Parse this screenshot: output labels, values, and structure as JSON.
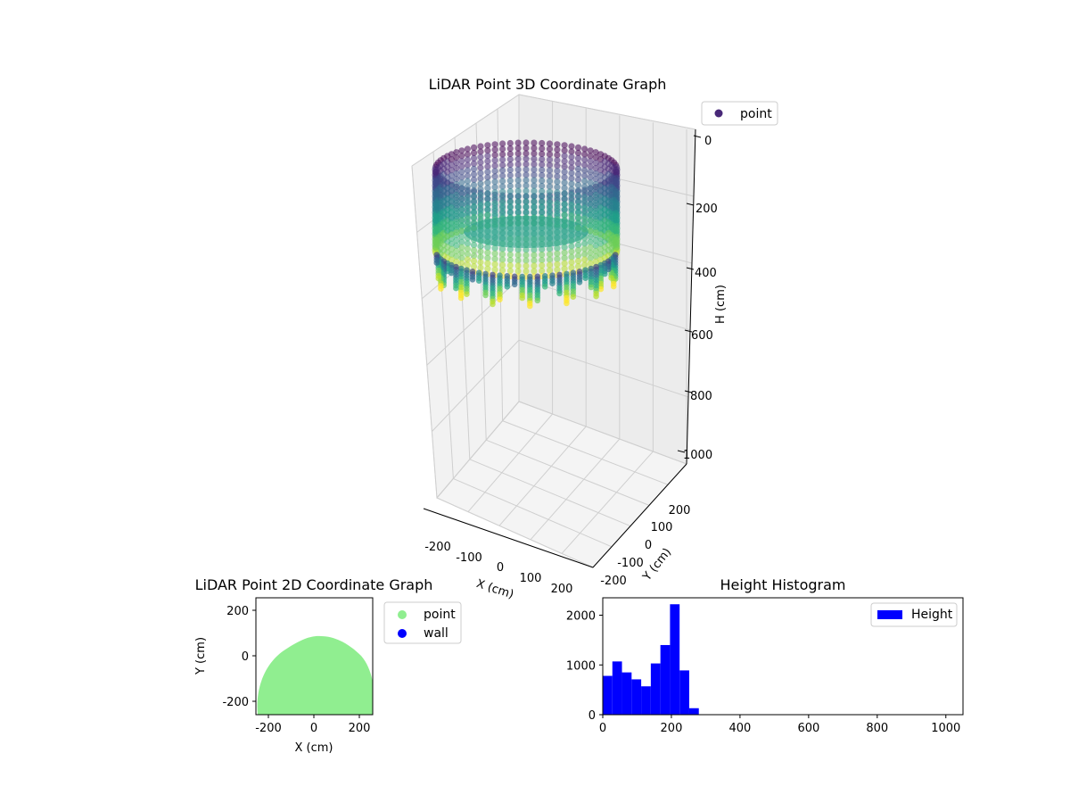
{
  "chart_data": [
    {
      "id": "scatter3d",
      "type": "scatter3d",
      "title": "LiDAR Point 3D Coordinate Graph",
      "xlabel": "X (cm)",
      "ylabel": "Y (cm)",
      "zlabel": "H (cm)",
      "x_ticks": [
        -200,
        -100,
        0,
        100,
        200
      ],
      "y_ticks": [
        -200,
        -100,
        0,
        100,
        200
      ],
      "z_ticks": [
        0,
        200,
        400,
        600,
        800,
        1000
      ],
      "z_inverted": true,
      "legend": [
        {
          "label": "point",
          "color": "#482878"
        }
      ],
      "legend_position": "top-right",
      "colormap": "viridis",
      "shape": "ring-shaped band of points, outer radius ~250 cm, heights ~0-300 cm"
    },
    {
      "id": "scatter2d",
      "type": "scatter",
      "title": "LiDAR Point 2D Coordinate Graph",
      "xlabel": "X (cm)",
      "ylabel": "Y (cm)",
      "xlim": [
        -260,
        260
      ],
      "ylim": [
        -260,
        260
      ],
      "x_ticks": [
        -200,
        0,
        200
      ],
      "y_ticks": [
        200,
        0,
        -200
      ],
      "series": [
        {
          "name": "point",
          "color": "#90ee90",
          "shape": "half-disc, radius ~250 cm, top near y=90"
        },
        {
          "name": "wall",
          "color": "#0000ff",
          "values": []
        }
      ],
      "legend_position": "outside-right"
    },
    {
      "id": "histogram",
      "type": "bar",
      "title": "Height Histogram",
      "xlabel": "",
      "ylabel": "",
      "xlim": [
        0,
        1050
      ],
      "ylim": [
        0,
        2350
      ],
      "x_ticks": [
        0,
        200,
        400,
        600,
        800,
        1000
      ],
      "y_ticks": [
        0,
        1000,
        2000
      ],
      "bin_edges": [
        0,
        28,
        56,
        84,
        112,
        140,
        168,
        196,
        224,
        252,
        280
      ],
      "values": [
        780,
        1070,
        850,
        710,
        570,
        1030,
        1400,
        2220,
        890,
        130
      ],
      "series_name": "Height",
      "color": "#0000ff",
      "legend_position": "top-right"
    }
  ]
}
